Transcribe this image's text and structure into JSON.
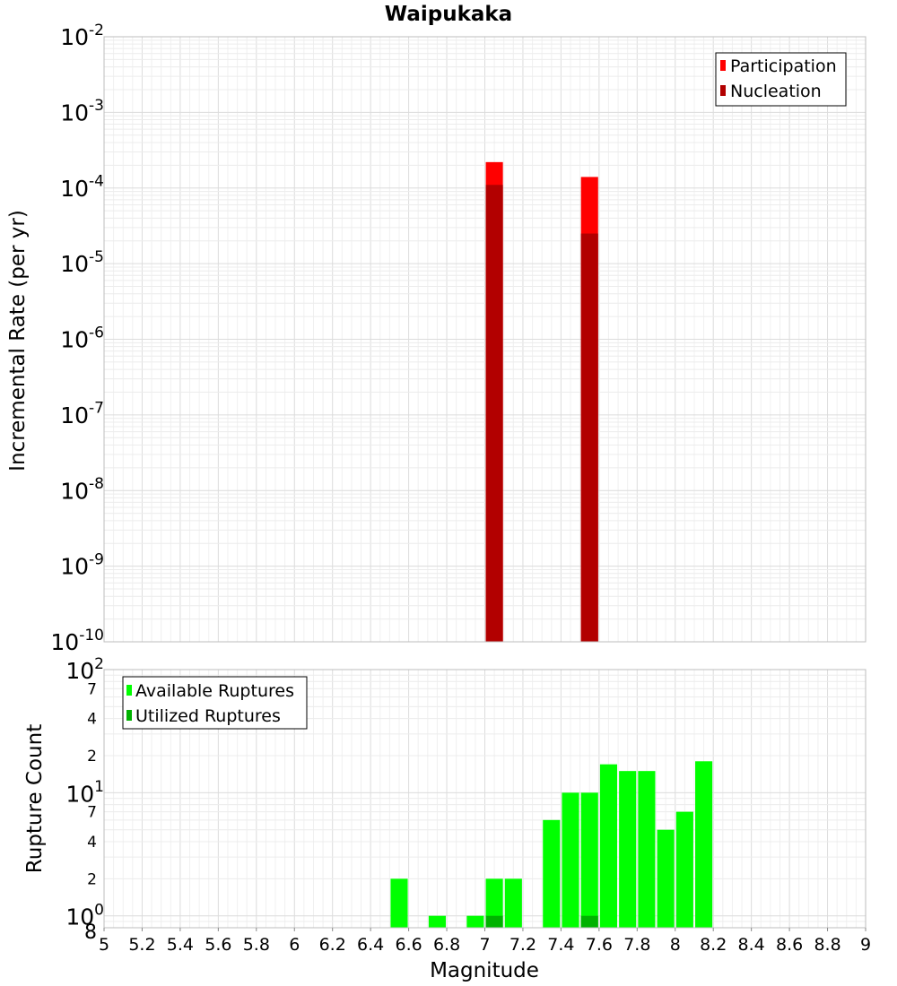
{
  "chart_data": [
    {
      "type": "bar",
      "title": "Waipukaka",
      "ylabel": "Incremental Rate (per yr)",
      "yscale": "log",
      "ylim": [
        1e-10,
        0.01
      ],
      "xlim": [
        5,
        9
      ],
      "y_tick_labels": [
        {
          "base": "10",
          "exp": "-10"
        },
        {
          "base": "10",
          "exp": "-9"
        },
        {
          "base": "10",
          "exp": "-8"
        },
        {
          "base": "10",
          "exp": "-7"
        },
        {
          "base": "10",
          "exp": "-6"
        },
        {
          "base": "10",
          "exp": "-5"
        },
        {
          "base": "10",
          "exp": "-4"
        },
        {
          "base": "10",
          "exp": "-3"
        },
        {
          "base": "10",
          "exp": "-2"
        }
      ],
      "grid": true,
      "legend": "top-right",
      "bar_width": 0.09,
      "series": [
        {
          "name": "Participation",
          "color": "#ff0000",
          "x": [
            7.05,
            7.55
          ],
          "values": [
            0.00022,
            0.00014
          ]
        },
        {
          "name": "Nucleation",
          "color": "#b20000",
          "x": [
            7.05,
            7.55
          ],
          "values": [
            0.00011,
            2.5e-05
          ]
        }
      ]
    },
    {
      "type": "bar",
      "ylabel": "Rupture Count",
      "xlabel": "Magnitude",
      "yscale": "log",
      "ylim": [
        0.8,
        100
      ],
      "xlim": [
        5,
        9
      ],
      "x_tick_labels": [
        "5",
        "5.2",
        "5.4",
        "5.6",
        "5.8",
        "6",
        "6.2",
        "6.4",
        "6.6",
        "6.8",
        "7",
        "7.2",
        "7.4",
        "7.6",
        "7.8",
        "8",
        "8.2",
        "8.4",
        "8.6",
        "8.8",
        "9"
      ],
      "y_major_labels": [
        {
          "value": 1,
          "base": "10",
          "exp": "0"
        },
        {
          "value": 10,
          "base": "10",
          "exp": "1"
        },
        {
          "value": 100,
          "base": "10",
          "exp": "2"
        }
      ],
      "y_minor_labels": [
        {
          "value": 0.8,
          "label": "8"
        },
        {
          "value": 2,
          "label": "2"
        },
        {
          "value": 4,
          "label": "4"
        },
        {
          "value": 7,
          "label": "7"
        },
        {
          "value": 20,
          "label": "2"
        },
        {
          "value": 40,
          "label": "4"
        },
        {
          "value": 70,
          "label": "7"
        }
      ],
      "grid": true,
      "legend": "top-left",
      "bar_width": 0.09,
      "series": [
        {
          "name": "Available Ruptures",
          "color": "#00ff00",
          "x": [
            6.55,
            6.75,
            6.95,
            7.05,
            7.15,
            7.35,
            7.45,
            7.55,
            7.65,
            7.75,
            7.85,
            7.95,
            8.05,
            8.15
          ],
          "values": [
            2,
            1,
            1,
            2,
            2,
            6,
            10,
            10,
            17,
            15,
            15,
            5,
            7,
            18
          ]
        },
        {
          "name": "Utilized Ruptures",
          "color": "#00b200",
          "x": [
            7.05,
            7.55
          ],
          "values": [
            1,
            1
          ]
        }
      ]
    }
  ]
}
